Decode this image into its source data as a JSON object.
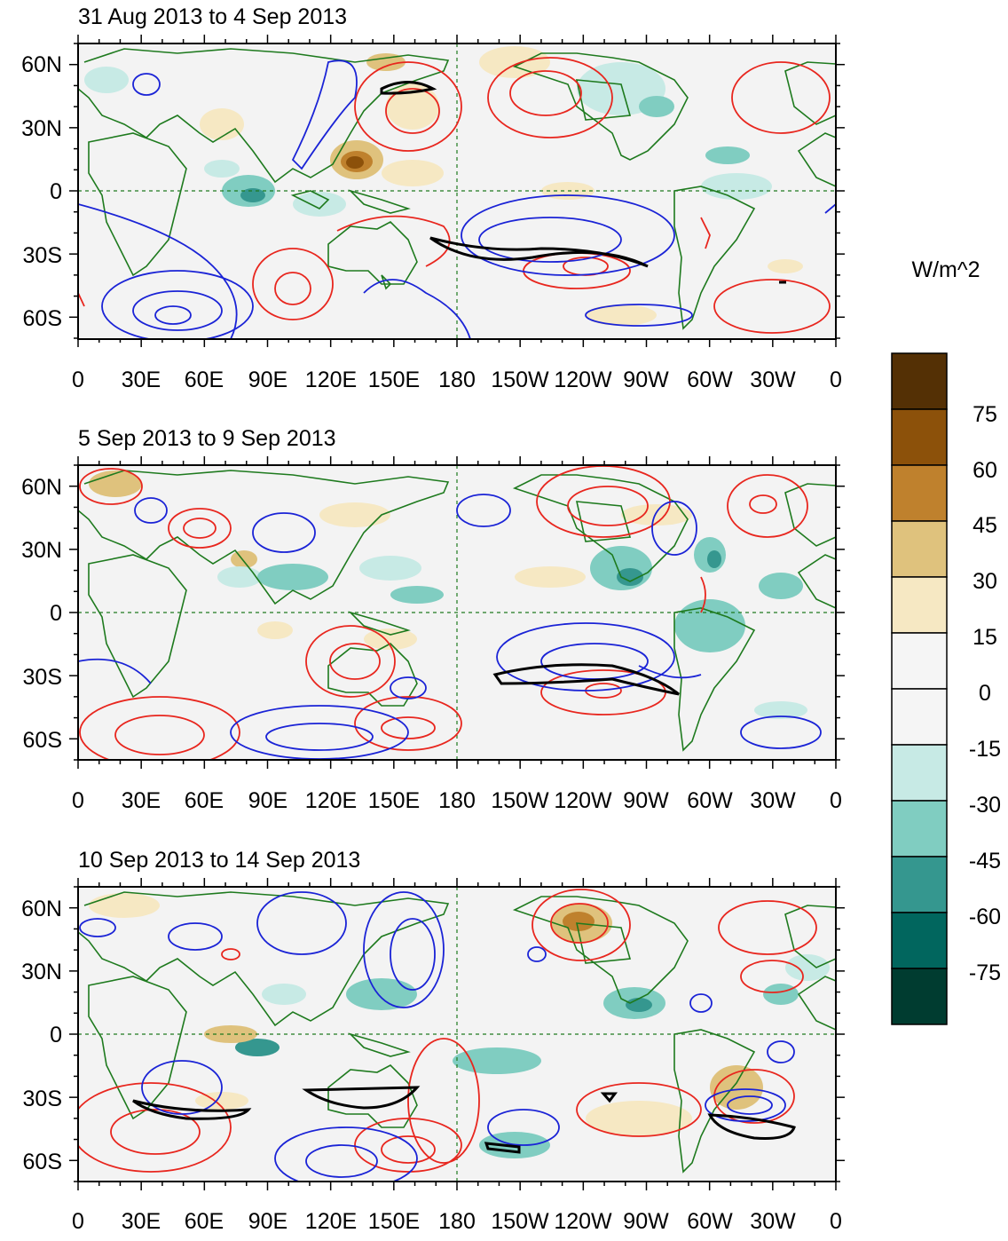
{
  "panels": [
    {
      "title": "31 Aug 2013 to 4 Sep 2013"
    },
    {
      "title": "5 Sep 2013 to 9 Sep 2013"
    },
    {
      "title": "10 Sep 2013 to 14 Sep 2013"
    }
  ],
  "lat_labels": [
    "60N",
    "30N",
    "0",
    "30S",
    "60S"
  ],
  "lon_labels": [
    "0",
    "30E",
    "60E",
    "90E",
    "120E",
    "150E",
    "180",
    "150W",
    "120W",
    "90W",
    "60W",
    "30W",
    "0"
  ],
  "colorbar": {
    "units": "W/m^2",
    "labels": [
      "75",
      "60",
      "45",
      "30",
      "15",
      "0",
      "-15",
      "-30",
      "-45",
      "-60",
      "-75"
    ],
    "colors": [
      "#543005",
      "#8c510a",
      "#bf812d",
      "#dfc27d",
      "#f6e8c3",
      "#f5f5f5",
      "#f5f5f5",
      "#c7eae5",
      "#80cdc1",
      "#35978f",
      "#01665e",
      "#003c30"
    ]
  },
  "colors": {
    "coast": "#1e7a1e",
    "positive_contour": "#e8261e",
    "negative_contour": "#1a23d6",
    "significance_contour": "#000000",
    "background": "#f3f3f3"
  }
}
